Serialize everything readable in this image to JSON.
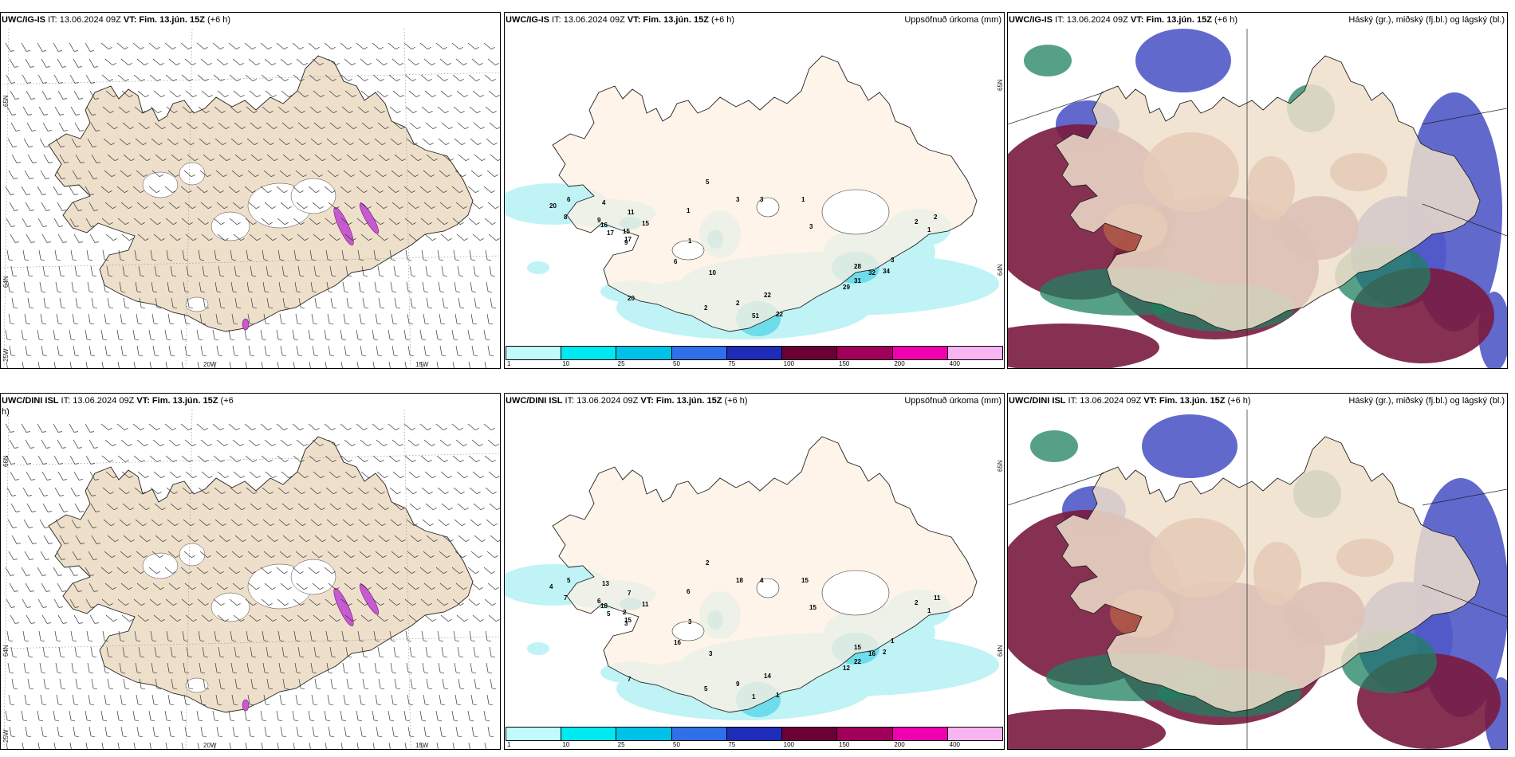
{
  "panels": {
    "ig_wind": {
      "model": "UWC/IG-IS",
      "it_text": " IT: 13.06.2024 09Z ",
      "vt_text": "VT: Fim. 13.jún. 15Z",
      "lead": " (+6 h)",
      "right_title": "",
      "lat_labels": [
        "65N",
        "64N"
      ],
      "lon_labels": [
        "25W",
        "20W",
        "15W"
      ]
    },
    "ig_precip": {
      "model": "UWC/IG-IS",
      "it_text": " IT: 13.06.2024 09Z ",
      "vt_text": "VT: Fim. 13.jún. 15Z",
      "lead": " (+6 h)",
      "right_title": "Uppsöfnuð úrkoma (mm)",
      "lat_labels": [
        "65N",
        "64N"
      ],
      "values": [
        "5",
        "3",
        "1",
        "20",
        "6",
        "4",
        "11",
        "8",
        "9",
        "16",
        "9",
        "15",
        "17",
        "3",
        "17",
        "15",
        "1",
        "6",
        "10",
        "20",
        "2",
        "2",
        "22",
        "22",
        "51",
        "3",
        "1",
        "28",
        "32",
        "34",
        "31",
        "29",
        "3",
        "2",
        "2",
        "1"
      ]
    },
    "ig_cloud": {
      "model": "UWC/IG-IS",
      "it_text": " IT: 13.06.2024 09Z ",
      "vt_text": "VT: Fim. 13.jún. 15Z",
      "lead": " (+6 h)",
      "right_title": "Háský (gr.), miðský (fj.bl.) og lágský (bl.)"
    },
    "dini_wind": {
      "model": "UWC/DINI ISL",
      "it_text": " IT: 13.06.2024 09Z ",
      "vt_text": "VT: Fim. 13.jún. 15Z",
      "lead": " (+6",
      "lead2": "h)",
      "right_title": "",
      "lat_labels": [
        "66N",
        "64N"
      ],
      "lon_labels": [
        "25W",
        "20W",
        "15W"
      ]
    },
    "dini_precip": {
      "model": "UWC/DINI ISL",
      "it_text": " IT: 13.06.2024 09Z ",
      "vt_text": "VT: Fim. 13.jún. 15Z",
      "lead": " (+6 h)",
      "right_title": "Uppsöfnuð úrkoma (mm)",
      "lat_labels": [
        "65N",
        "64N"
      ],
      "values": [
        "2",
        "18",
        "6",
        "4",
        "5",
        "13",
        "7",
        "7",
        "6",
        "18",
        "3",
        "2",
        "5",
        "4",
        "15",
        "11",
        "3",
        "16",
        "3",
        "7",
        "5",
        "9",
        "1",
        "14",
        "1",
        "15",
        "15",
        "15",
        "16",
        "2",
        "22",
        "12",
        "1",
        "2",
        "11",
        "1"
      ]
    },
    "dini_cloud": {
      "model": "UWC/DINI ISL",
      "it_text": " IT: 13.06.2024 09Z ",
      "vt_text": "VT: Fim. 13.jún. 15Z",
      "lead": " (+6 h)",
      "right_title": "Háský (gr.), miðský (fj.bl.) og lágský (bl.)"
    }
  },
  "colorbar": {
    "ticks": [
      "1",
      "10",
      "25",
      "50",
      "75",
      "100",
      "150",
      "200",
      "400"
    ],
    "colors": [
      "#c0fafa",
      "#00e8f0",
      "#00c2e8",
      "#2f70e8",
      "#1f2cb8",
      "#6b0035",
      "#a0005a",
      "#f000b0",
      "#f6b4f0"
    ]
  },
  "colors": {
    "land": "#eedfcb",
    "land_precip": "#fdf0e2",
    "precip_light": "#bff3f6",
    "precip_mid": "#6fdcec",
    "cloud_high": "#1f8060",
    "cloud_mid": "#7a1b3f",
    "cloud_low": "#5059c8",
    "cloud_brown": "#b05a48"
  }
}
